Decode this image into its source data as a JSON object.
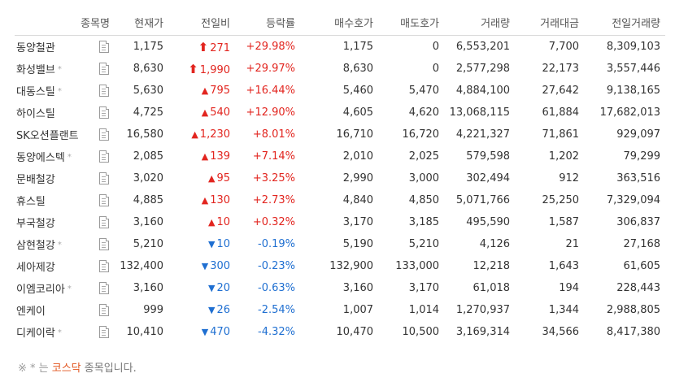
{
  "header": {
    "name": "종목명",
    "price": "현재가",
    "change": "전일비",
    "rate": "등락률",
    "bid": "매수호가",
    "ask": "매도호가",
    "volume": "거래량",
    "amount": "거래대금",
    "prev_volume": "전일거래량"
  },
  "rows": [
    {
      "name": "동양철관",
      "kosdaq": false,
      "price": "1,175",
      "dir": "upper",
      "change": "271",
      "rate": "+29.98%",
      "bid": "1,175",
      "ask": "0",
      "volume": "6,553,201",
      "amount": "7,700",
      "prev_volume": "8,309,103"
    },
    {
      "name": "화성밸브",
      "kosdaq": true,
      "price": "8,630",
      "dir": "upper",
      "change": "1,990",
      "rate": "+29.97%",
      "bid": "8,630",
      "ask": "0",
      "volume": "2,577,298",
      "amount": "22,173",
      "prev_volume": "3,557,446"
    },
    {
      "name": "대동스틸",
      "kosdaq": true,
      "price": "5,630",
      "dir": "up",
      "change": "795",
      "rate": "+16.44%",
      "bid": "5,460",
      "ask": "5,470",
      "volume": "4,884,100",
      "amount": "27,642",
      "prev_volume": "9,138,165"
    },
    {
      "name": "하이스틸",
      "kosdaq": false,
      "price": "4,725",
      "dir": "up",
      "change": "540",
      "rate": "+12.90%",
      "bid": "4,605",
      "ask": "4,620",
      "volume": "13,068,115",
      "amount": "61,884",
      "prev_volume": "17,682,013"
    },
    {
      "name": "SK오션플랜트",
      "kosdaq": false,
      "price": "16,580",
      "dir": "up",
      "change": "1,230",
      "rate": "+8.01%",
      "bid": "16,710",
      "ask": "16,720",
      "volume": "4,221,327",
      "amount": "71,861",
      "prev_volume": "929,097"
    },
    {
      "name": "동양에스텍",
      "kosdaq": true,
      "price": "2,085",
      "dir": "up",
      "change": "139",
      "rate": "+7.14%",
      "bid": "2,010",
      "ask": "2,025",
      "volume": "579,598",
      "amount": "1,202",
      "prev_volume": "79,299"
    },
    {
      "name": "문배철강",
      "kosdaq": false,
      "price": "3,020",
      "dir": "up",
      "change": "95",
      "rate": "+3.25%",
      "bid": "2,990",
      "ask": "3,000",
      "volume": "302,494",
      "amount": "912",
      "prev_volume": "363,516"
    },
    {
      "name": "휴스틸",
      "kosdaq": false,
      "price": "4,885",
      "dir": "up",
      "change": "130",
      "rate": "+2.73%",
      "bid": "4,840",
      "ask": "4,850",
      "volume": "5,071,766",
      "amount": "25,250",
      "prev_volume": "7,329,094"
    },
    {
      "name": "부국철강",
      "kosdaq": false,
      "price": "3,160",
      "dir": "up",
      "change": "10",
      "rate": "+0.32%",
      "bid": "3,170",
      "ask": "3,185",
      "volume": "495,590",
      "amount": "1,587",
      "prev_volume": "306,837"
    },
    {
      "name": "삼현철강",
      "kosdaq": true,
      "price": "5,210",
      "dir": "down",
      "change": "10",
      "rate": "-0.19%",
      "bid": "5,190",
      "ask": "5,210",
      "volume": "4,126",
      "amount": "21",
      "prev_volume": "27,168"
    },
    {
      "name": "세아제강",
      "kosdaq": false,
      "price": "132,400",
      "dir": "down",
      "change": "300",
      "rate": "-0.23%",
      "bid": "132,900",
      "ask": "133,000",
      "volume": "12,218",
      "amount": "1,643",
      "prev_volume": "61,605"
    },
    {
      "name": "이엠코리아",
      "kosdaq": true,
      "price": "3,160",
      "dir": "down",
      "change": "20",
      "rate": "-0.63%",
      "bid": "3,160",
      "ask": "3,170",
      "volume": "61,018",
      "amount": "194",
      "prev_volume": "228,443"
    },
    {
      "name": "엔케이",
      "kosdaq": false,
      "price": "999",
      "dir": "down",
      "change": "26",
      "rate": "-2.54%",
      "bid": "1,007",
      "ask": "1,014",
      "volume": "1,270,937",
      "amount": "1,344",
      "prev_volume": "2,988,805"
    },
    {
      "name": "디케이락",
      "kosdaq": true,
      "price": "10,410",
      "dir": "down",
      "change": "470",
      "rate": "-4.32%",
      "bid": "10,470",
      "ask": "10,500",
      "volume": "3,169,314",
      "amount": "34,566",
      "prev_volume": "8,417,380"
    }
  ],
  "footnote": {
    "prefix": "※ * 는",
    "highlight": "코스닥",
    "suffix": "종목입니다."
  },
  "colors": {
    "up": "#e2251f",
    "down": "#1f6fd1",
    "kosdaq": "#e2551f"
  },
  "icons": {
    "upper_limit": "heavy-up-arrow",
    "up": "triangle-up",
    "down": "triangle-down",
    "doc": "document-icon",
    "kosdaq_mark": "asterisk"
  }
}
